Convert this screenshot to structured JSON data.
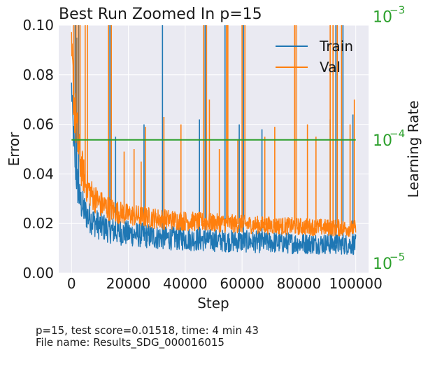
{
  "chart_data": {
    "type": "line",
    "title": "Best Run Zoomed In p=15",
    "xlabel": "Step",
    "ylabel": "Error",
    "y2label": "Learning Rate",
    "xlim": [
      -4500,
      104500
    ],
    "ylim": [
      0.0,
      0.1
    ],
    "y2lim_log10": [
      -5.08,
      -3.07
    ],
    "y2_scale": "log",
    "xticks": [
      0,
      20000,
      40000,
      60000,
      80000,
      100000
    ],
    "yticks": [
      0.0,
      0.02,
      0.04,
      0.06,
      0.08,
      0.1
    ],
    "xtick_labels": [
      "0",
      "20000",
      "40000",
      "60000",
      "80000",
      "100000"
    ],
    "ytick_labels": [
      "0.00",
      "0.02",
      "0.04",
      "0.06",
      "0.08",
      "0.10"
    ],
    "y2ticks": [
      {
        "base": "10",
        "exp": "−3",
        "value": 0.001
      },
      {
        "base": "10",
        "exp": "−4",
        "value": 0.0001
      },
      {
        "base": "10",
        "exp": "−5",
        "value": 1e-05
      }
    ],
    "grid": true,
    "legend_position": "top-right",
    "series": [
      {
        "name": "Train",
        "color": "#1f77b4",
        "band_x": [
          0,
          500,
          1000,
          2000,
          3000,
          5000,
          7500,
          10000,
          15000,
          20000,
          30000,
          40000,
          50000,
          60000,
          70000,
          80000,
          90000,
          100000
        ],
        "band_center": [
          0.075,
          0.06,
          0.048,
          0.036,
          0.029,
          0.024,
          0.021,
          0.019,
          0.017,
          0.016,
          0.0145,
          0.0138,
          0.0132,
          0.0128,
          0.0124,
          0.012,
          0.0118,
          0.0115
        ],
        "band_halfwidth": [
          0.006,
          0.007,
          0.008,
          0.008,
          0.007,
          0.0065,
          0.006,
          0.0058,
          0.0055,
          0.0052,
          0.005,
          0.0048,
          0.0046,
          0.0045,
          0.0044,
          0.0043,
          0.0042,
          0.0042
        ],
        "spikes": [
          {
            "x": 1300,
            "y": 0.1
          },
          {
            "x": 1800,
            "y": 0.095
          },
          {
            "x": 2500,
            "y": 0.1
          },
          {
            "x": 13500,
            "y": 0.1
          },
          {
            "x": 15500,
            "y": 0.055
          },
          {
            "x": 25500,
            "y": 0.06
          },
          {
            "x": 32000,
            "y": 0.1
          },
          {
            "x": 45000,
            "y": 0.062
          },
          {
            "x": 47000,
            "y": 0.1
          },
          {
            "x": 54000,
            "y": 0.1
          },
          {
            "x": 59000,
            "y": 0.06
          },
          {
            "x": 60500,
            "y": 0.1
          },
          {
            "x": 67000,
            "y": 0.058
          },
          {
            "x": 91000,
            "y": 0.062
          },
          {
            "x": 93000,
            "y": 0.1
          },
          {
            "x": 95500,
            "y": 0.1
          },
          {
            "x": 99000,
            "y": 0.064
          }
        ]
      },
      {
        "name": "Val",
        "color": "#ff7f0e",
        "band_x": [
          0,
          500,
          1000,
          2000,
          3000,
          5000,
          7500,
          10000,
          15000,
          20000,
          30000,
          40000,
          50000,
          60000,
          70000,
          80000,
          90000,
          100000
        ],
        "band_center": [
          0.088,
          0.078,
          0.068,
          0.055,
          0.045,
          0.036,
          0.031,
          0.028,
          0.025,
          0.0235,
          0.022,
          0.021,
          0.0203,
          0.0197,
          0.0192,
          0.0188,
          0.0184,
          0.018
        ],
        "band_halfwidth": [
          0.01,
          0.012,
          0.012,
          0.011,
          0.009,
          0.007,
          0.006,
          0.0055,
          0.0048,
          0.0045,
          0.0042,
          0.004,
          0.0038,
          0.0037,
          0.0036,
          0.0035,
          0.0034,
          0.0034
        ],
        "spikes": [
          {
            "x": 800,
            "y": 0.1
          },
          {
            "x": 1600,
            "y": 0.1
          },
          {
            "x": 2300,
            "y": 0.1
          },
          {
            "x": 3000,
            "y": 0.1
          },
          {
            "x": 4800,
            "y": 0.1
          },
          {
            "x": 5600,
            "y": 0.1
          },
          {
            "x": 13000,
            "y": 0.1
          },
          {
            "x": 14000,
            "y": 0.1
          },
          {
            "x": 18500,
            "y": 0.049
          },
          {
            "x": 22000,
            "y": 0.05
          },
          {
            "x": 24500,
            "y": 0.045
          },
          {
            "x": 26000,
            "y": 0.059
          },
          {
            "x": 32500,
            "y": 0.063
          },
          {
            "x": 38500,
            "y": 0.06
          },
          {
            "x": 46500,
            "y": 0.1
          },
          {
            "x": 47500,
            "y": 0.1
          },
          {
            "x": 48500,
            "y": 0.07
          },
          {
            "x": 52000,
            "y": 0.05
          },
          {
            "x": 54500,
            "y": 0.1
          },
          {
            "x": 55000,
            "y": 0.1
          },
          {
            "x": 58500,
            "y": 0.054
          },
          {
            "x": 60000,
            "y": 0.1
          },
          {
            "x": 61000,
            "y": 0.1
          },
          {
            "x": 68000,
            "y": 0.055
          },
          {
            "x": 71500,
            "y": 0.059
          },
          {
            "x": 78500,
            "y": 0.1
          },
          {
            "x": 79000,
            "y": 0.1
          },
          {
            "x": 83000,
            "y": 0.06
          },
          {
            "x": 86000,
            "y": 0.055
          },
          {
            "x": 91000,
            "y": 0.1
          },
          {
            "x": 92000,
            "y": 0.1
          },
          {
            "x": 93500,
            "y": 0.1
          },
          {
            "x": 95000,
            "y": 0.1
          },
          {
            "x": 98000,
            "y": 0.06
          },
          {
            "x": 99500,
            "y": 0.07
          }
        ]
      },
      {
        "name": "Learning Rate",
        "axis": "right",
        "color": "#2ca02c",
        "x": [
          0,
          100000
        ],
        "y": [
          0.0001,
          0.0001
        ]
      }
    ]
  },
  "caption": {
    "line1": "p=15, test score=0.01518, time: 4 min 43",
    "line2": "File name: Results_SDG_000016015"
  },
  "colors": {
    "plot_background": "#eaeaf2",
    "grid": "#ffffff",
    "lr_axis": "#2ca02c"
  }
}
